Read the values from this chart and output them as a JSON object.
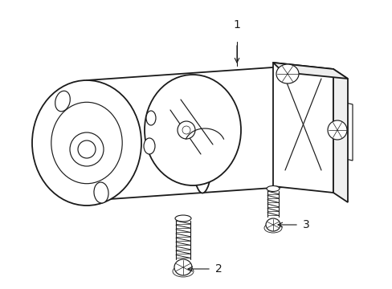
{
  "background_color": "#ffffff",
  "line_color": "#1a1a1a",
  "lw_main": 1.3,
  "lw_thin": 0.85,
  "lw_detail": 0.6,
  "label_1": "1",
  "label_2": "2",
  "label_3": "3",
  "label_fontsize": 10,
  "figsize": [
    4.89,
    3.6
  ],
  "dpi": 100
}
